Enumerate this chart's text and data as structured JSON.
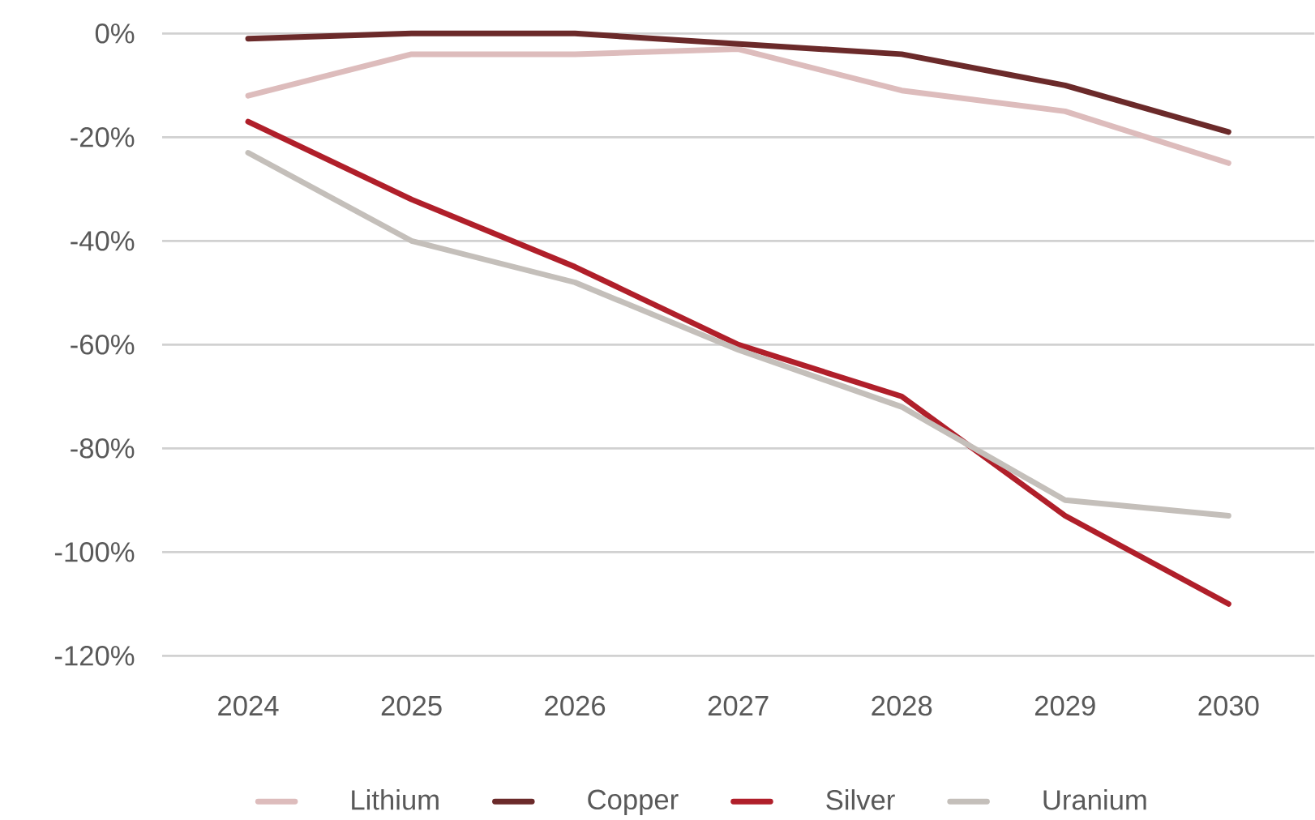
{
  "chart_data": {
    "type": "line",
    "categories": [
      "2024",
      "2025",
      "2026",
      "2027",
      "2028",
      "2029",
      "2030"
    ],
    "series": [
      {
        "name": "Lithium",
        "color": "#ddbcbc",
        "values": [
          -12,
          -4,
          -4,
          -3,
          -11,
          -15,
          -25
        ]
      },
      {
        "name": "Copper",
        "color": "#6b2a2a",
        "values": [
          -1,
          0,
          0,
          -2,
          -4,
          -10,
          -19
        ]
      },
      {
        "name": "Silver",
        "color": "#b01f2a",
        "values": [
          -17,
          -32,
          -45,
          -60,
          -70,
          -93,
          -110
        ]
      },
      {
        "name": "Uranium",
        "color": "#c4bfba",
        "values": [
          -23,
          -40,
          -48,
          -61,
          -72,
          -90,
          -93
        ]
      }
    ],
    "ylim": [
      -120,
      0
    ],
    "yticks": [
      {
        "value": 0,
        "label": "0%"
      },
      {
        "value": -20,
        "label": "-20%"
      },
      {
        "value": -40,
        "label": "-40%"
      },
      {
        "value": -60,
        "label": "-60%"
      },
      {
        "value": -80,
        "label": "-80%"
      },
      {
        "value": -100,
        "label": "-100%"
      },
      {
        "value": -120,
        "label": "-120%"
      }
    ],
    "grid": "y",
    "legend": "bottom",
    "marker": "none",
    "line_style": "solid"
  }
}
